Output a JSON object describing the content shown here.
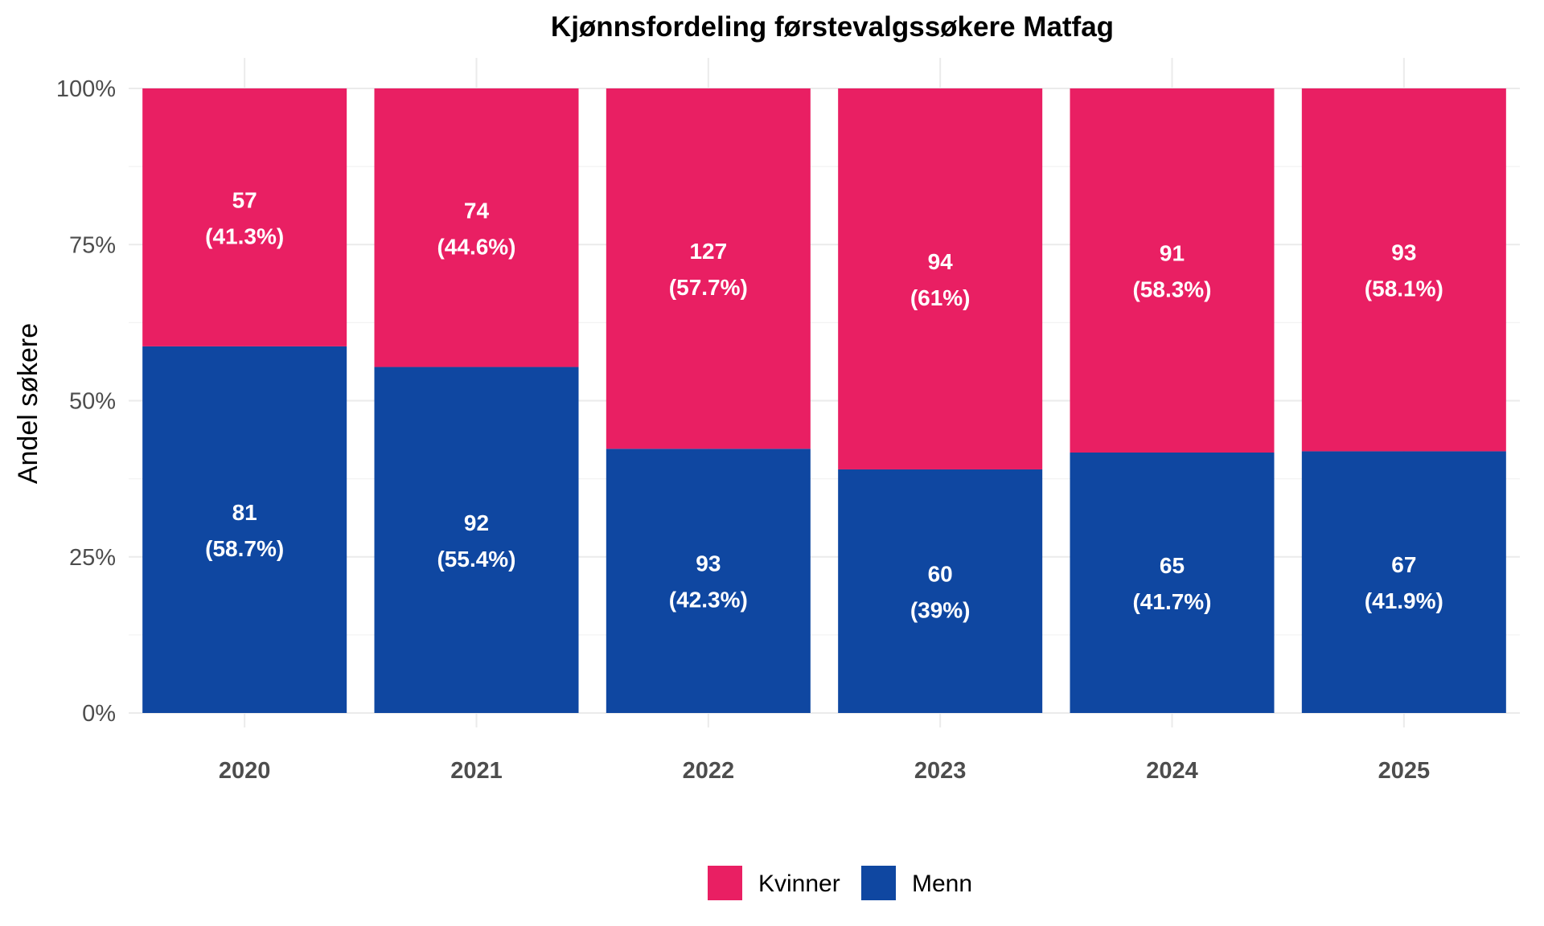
{
  "chart_data": {
    "type": "bar",
    "stacked": "percent",
    "title": "Kjønnsfordeling førstevalgssøkere Matfag",
    "xlabel": "",
    "ylabel": "Andel søkere",
    "ylim": [
      0,
      100
    ],
    "y_ticks": [
      "0%",
      "25%",
      "50%",
      "75%",
      "100%"
    ],
    "y_tick_values": [
      0,
      25,
      50,
      75,
      100
    ],
    "categories": [
      "2020",
      "2021",
      "2022",
      "2023",
      "2024",
      "2025"
    ],
    "series": [
      {
        "name": "Menn",
        "color": "#0f47a1",
        "counts": [
          81,
          92,
          93,
          60,
          65,
          67
        ],
        "values": [
          58.7,
          55.4,
          42.3,
          39,
          41.7,
          41.9
        ],
        "count_labels": [
          "81",
          "92",
          "93",
          "60",
          "65",
          "67"
        ],
        "pct_labels": [
          "(58.7%)",
          "(55.4%)",
          "(42.3%)",
          "(39%)",
          "(41.7%)",
          "(41.9%)"
        ]
      },
      {
        "name": "Kvinner",
        "color": "#e91f63",
        "counts": [
          57,
          74,
          127,
          94,
          91,
          93
        ],
        "values": [
          41.3,
          44.6,
          57.7,
          61,
          58.3,
          58.1
        ],
        "count_labels": [
          "57",
          "74",
          "127",
          "94",
          "91",
          "93"
        ],
        "pct_labels": [
          "(41.3%)",
          "(44.6%)",
          "(57.7%)",
          "(61%)",
          "(58.3%)",
          "(58.1%)"
        ]
      }
    ],
    "legend": {
      "position": "bottom",
      "items": [
        {
          "name": "Kvinner",
          "color": "#e91f63"
        },
        {
          "name": "Menn",
          "color": "#0f47a1"
        }
      ]
    },
    "grid": true
  }
}
